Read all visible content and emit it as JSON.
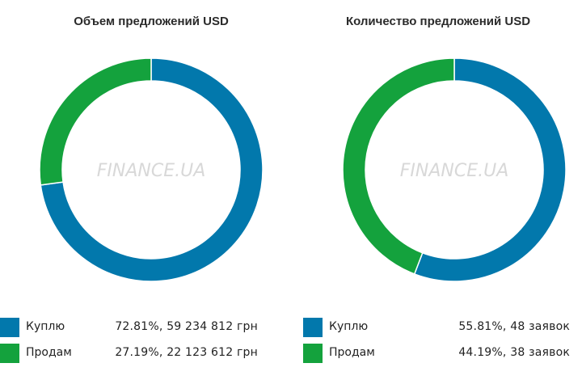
{
  "colors": {
    "buy": "#0278ac",
    "sell": "#14a23d",
    "watermark": "#d8d8d8",
    "watermark_accent": "#9fdcae"
  },
  "watermark": "FINANCE.UA",
  "chart_data": [
    {
      "type": "pie",
      "title": "Объем предложений USD",
      "categories": [
        "Куплю",
        "Продам"
      ],
      "values": [
        72.81,
        27.19
      ],
      "legend": [
        {
          "label": "Куплю",
          "value_text": "72.81%, 59 234 812 грн"
        },
        {
          "label": "Продам",
          "value_text": "27.19%, 22 123 612 грн"
        }
      ],
      "legend_placement": "bottom"
    },
    {
      "type": "pie",
      "title": "Количество предложений USD",
      "categories": [
        "Куплю",
        "Продам"
      ],
      "values": [
        55.81,
        44.19
      ],
      "legend": [
        {
          "label": "Куплю",
          "value_text": "55.81%, 48 заявок"
        },
        {
          "label": "Продам",
          "value_text": "44.19%, 38 заявок"
        }
      ],
      "legend_placement": "bottom"
    }
  ]
}
